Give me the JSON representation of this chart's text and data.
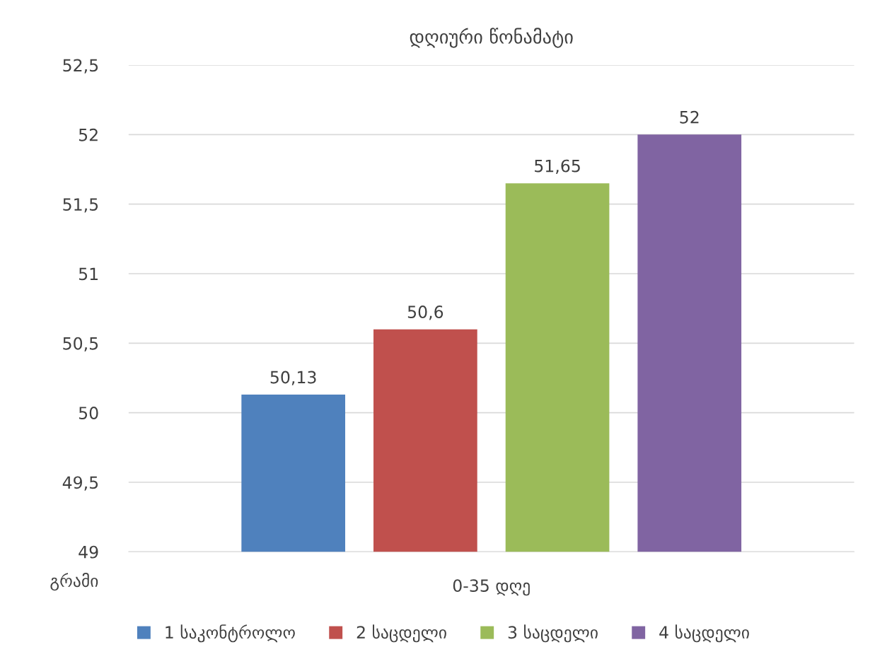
{
  "chart_data": {
    "type": "bar",
    "title": "დღიური წონამატი",
    "ylabel": "გრამი",
    "categories": [
      "0-35 დღე"
    ],
    "series": [
      {
        "name": "1 საკონტროლო",
        "color": "#4f81bd",
        "values": [
          50.13
        ],
        "value_labels": [
          "50,13"
        ]
      },
      {
        "name": "2 საცდელი",
        "color": "#c0504d",
        "values": [
          50.6
        ],
        "value_labels": [
          "50,6"
        ]
      },
      {
        "name": "3 საცდელი",
        "color": "#9bbb59",
        "values": [
          51.65
        ],
        "value_labels": [
          "51,65"
        ]
      },
      {
        "name": "4 საცდელი",
        "color": "#8064a2",
        "values": [
          52
        ],
        "value_labels": [
          "52"
        ]
      }
    ],
    "ylim": [
      49,
      52.5
    ],
    "yticks": [
      49,
      {
        "value": 49.5,
        "label": "49,5"
      },
      50,
      {
        "value": 50.5,
        "label": "50,5"
      },
      51,
      {
        "value": 51.5,
        "label": "51,5"
      },
      52,
      {
        "value": 52.5,
        "label": "52,5"
      }
    ],
    "grid": "y",
    "legend": "bottom"
  }
}
